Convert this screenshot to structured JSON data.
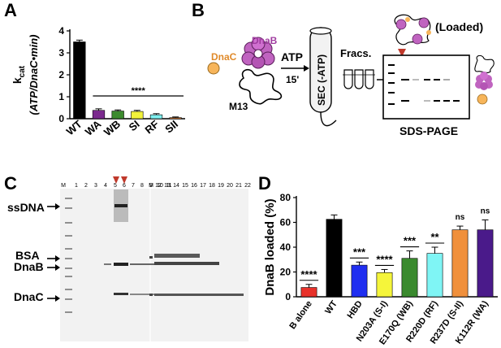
{
  "panels": {
    "a": "A",
    "b": "B",
    "c": "C",
    "d": "D"
  },
  "chart_data": [
    {
      "type": "bar",
      "categories": [
        "WT",
        "WA",
        "WB",
        "SI",
        "RF",
        "SII"
      ],
      "values": [
        3.5,
        0.38,
        0.35,
        0.33,
        0.18,
        0.05
      ],
      "errors": [
        0.08,
        0.07,
        0.05,
        0.05,
        0.05,
        0.03
      ],
      "colors": [
        "#000000",
        "#7b2a8e",
        "#3c8a2e",
        "#f2f23a",
        "#7ff0f0",
        "#f08a3c"
      ],
      "ylabel_main": "k",
      "ylabel_sub": "cat",
      "ylabel_units": "(ATP/DnaC•min)",
      "yticks": [
        0,
        1,
        2,
        3,
        4
      ],
      "ylim": [
        0,
        4
      ],
      "significance": "****"
    },
    {
      "type": "bar",
      "categories": [
        "B alone",
        "WT",
        "HBD",
        "N203A (S-I)",
        "E170Q (WB)",
        "R220D (RF)",
        "R237D (S-II)",
        "K112R (WA)"
      ],
      "values": [
        7.5,
        62.5,
        25.5,
        19.5,
        31,
        35,
        54,
        54
      ],
      "errors": [
        2.5,
        3.5,
        2.5,
        2.5,
        6,
        5,
        3,
        8
      ],
      "colors": [
        "#e8312a",
        "#000000",
        "#1f2ef0",
        "#f5f53a",
        "#3a8a2e",
        "#7ff5f5",
        "#f0903c",
        "#4a1a8a"
      ],
      "significance": [
        "****",
        "",
        "***",
        "****",
        "***",
        "**",
        "ns",
        "ns"
      ],
      "ylabel": "DnaB loaded (%)",
      "yticks": [
        0,
        20,
        40,
        60,
        80
      ],
      "ylim": [
        0,
        80
      ]
    }
  ],
  "schematic": {
    "dnab": "DnaB",
    "dnac": "DnaC",
    "m13": "M13",
    "atp": "ATP",
    "time": "15'",
    "sec": "SEC (-ATP)",
    "fracs": "Fracs.",
    "loaded": "(Loaded)",
    "gel": "SDS-PAGE"
  },
  "gel": {
    "lanes_left": [
      "M",
      "1",
      "2",
      "3",
      "4",
      "5",
      "6",
      "7",
      "8",
      "9",
      "10",
      "11"
    ],
    "lanes_right": [
      "M",
      "12",
      "13",
      "14",
      "15",
      "16",
      "17",
      "18",
      "19",
      "20",
      "21",
      "22"
    ],
    "band_labels": [
      "ssDNA",
      "BSA",
      "DnaB",
      "DnaC"
    ]
  }
}
